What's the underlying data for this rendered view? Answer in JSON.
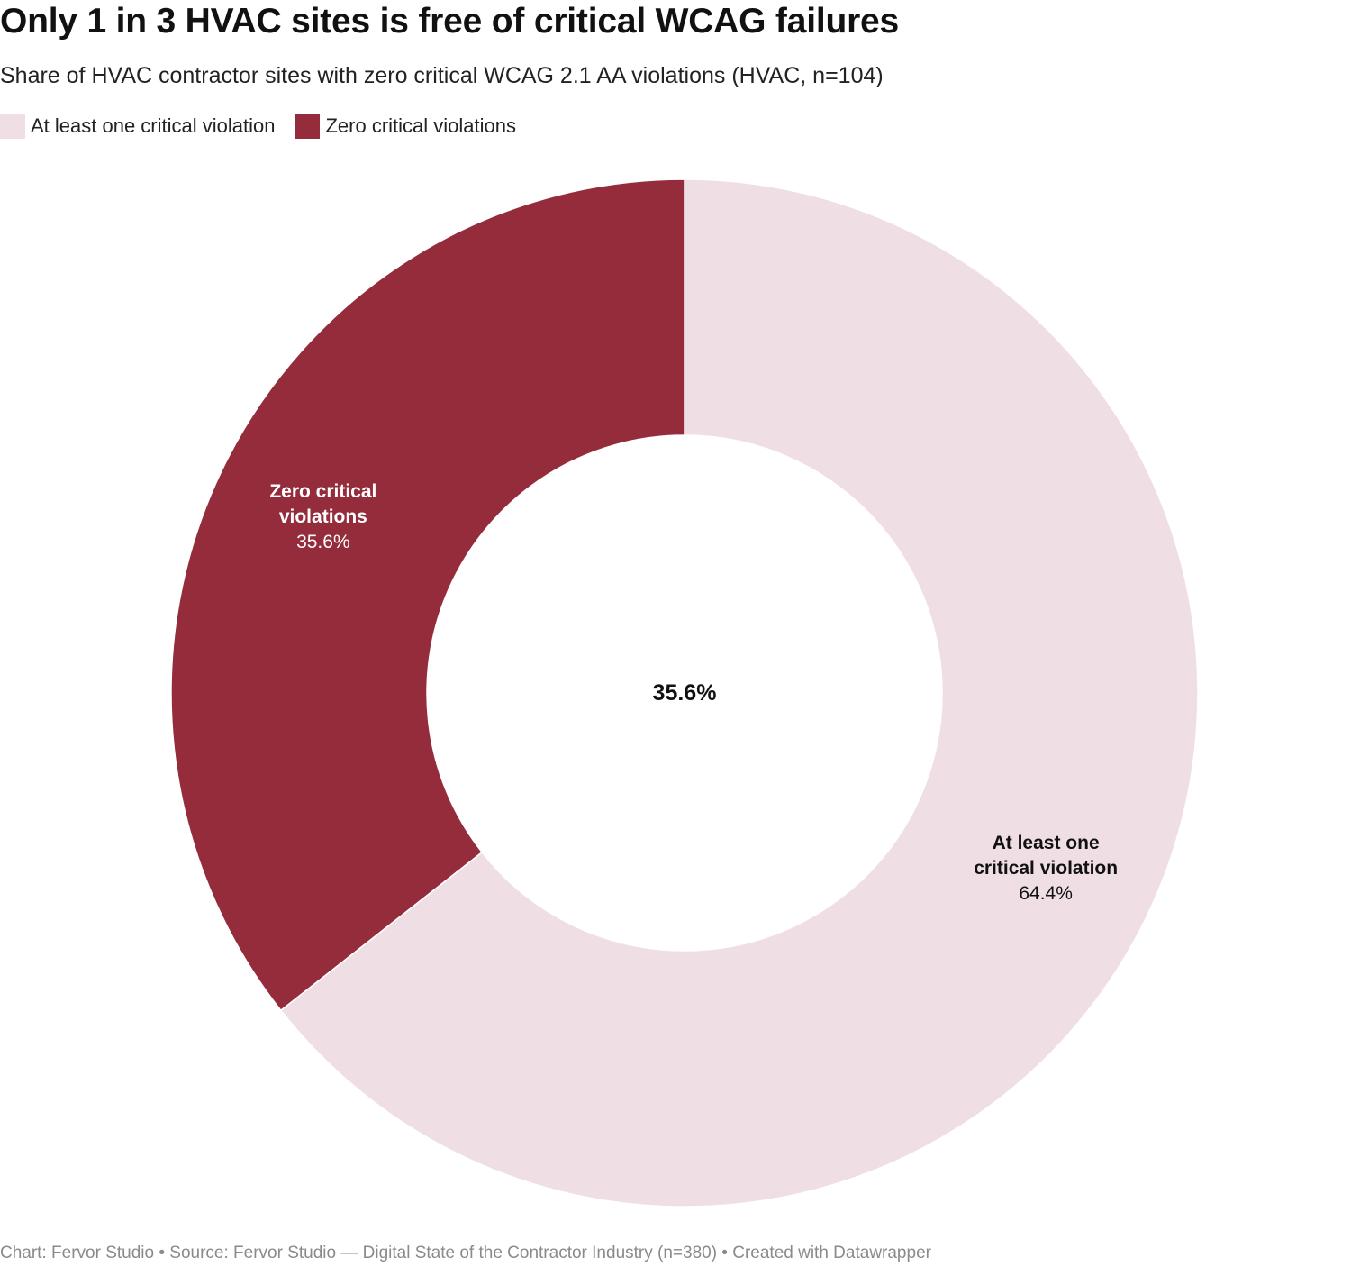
{
  "header": {
    "title": "Only 1 in 3 HVAC sites is free of critical WCAG failures",
    "subtitle": "Share of HVAC contractor sites with zero critical WCAG 2.1 AA violations (HVAC, n=104)"
  },
  "legend": {
    "items": [
      {
        "label": "At least one critical violation",
        "color": "#efdfe4"
      },
      {
        "label": "Zero critical violations",
        "color": "#942c3b"
      }
    ]
  },
  "chart_data": {
    "type": "pie",
    "donut": true,
    "legend_position": "top-left",
    "center_label": "35.6%",
    "series": [
      {
        "name": "Zero critical violations",
        "label_lines": [
          "Zero critical",
          "violations"
        ],
        "value": 35.6,
        "value_label": "35.6%",
        "color": "#942c3b",
        "label_color": "#ffffff"
      },
      {
        "name": "At least one critical violation",
        "label_lines": [
          "At least one",
          "critical violation"
        ],
        "value": 64.4,
        "value_label": "64.4%",
        "color": "#efdfe4",
        "label_color": "#111111"
      }
    ]
  },
  "footer": {
    "credit": "Chart: Fervor Studio • Source: Fervor Studio — Digital State of the Contractor Industry (n=380) • Created with Datawrapper"
  }
}
